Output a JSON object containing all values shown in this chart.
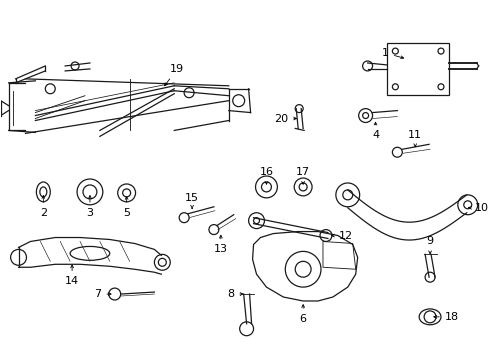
{
  "bg_color": "#ffffff",
  "line_color": "#1a1a1a",
  "figsize": [
    4.89,
    3.6
  ],
  "dpi": 100,
  "label_fontsize": 8.0,
  "arrow_lw": 0.6,
  "part_lw": 0.9
}
